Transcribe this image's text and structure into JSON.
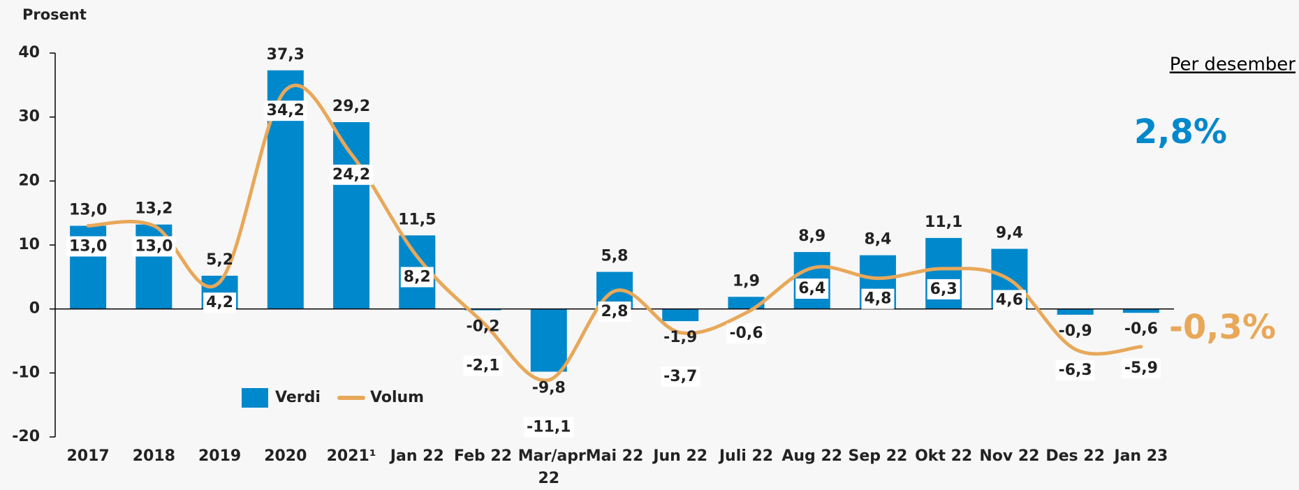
{
  "chart_data": {
    "type": "bar_line",
    "y_label": "Prosent",
    "categories": [
      "2017",
      "2018",
      "2019",
      "2020",
      "2021¹",
      "Jan 22",
      "Feb 22",
      "Mar/apr 22",
      "Mai 22",
      "Jun 22",
      "Juli 22",
      "Aug 22",
      "Sep 22",
      "Okt 22",
      "Nov 22",
      "Des 22",
      "Jan 23"
    ],
    "series": [
      {
        "name": "Verdi",
        "color": "#0088cc",
        "kind": "bar",
        "values": [
          13.0,
          13.2,
          5.2,
          37.3,
          29.2,
          11.5,
          -0.2,
          -9.8,
          5.8,
          -1.9,
          1.9,
          8.9,
          8.4,
          11.1,
          9.4,
          -0.9,
          -0.6
        ],
        "value_labels": [
          "13,0",
          "13,2",
          "5,2",
          "37,3",
          "29,2",
          "11,5",
          "-0,2",
          "-9,8",
          "5,8",
          "-1,9",
          "1,9",
          "8,9",
          "8,4",
          "11,1",
          "9,4",
          "-0,9",
          "-0,6"
        ]
      },
      {
        "name": "Volum",
        "color": "#e8a85a",
        "kind": "line",
        "values": [
          13.0,
          13.0,
          4.2,
          34.2,
          24.2,
          8.2,
          -2.1,
          -11.1,
          2.8,
          -3.7,
          -0.6,
          6.4,
          4.8,
          6.3,
          4.6,
          -6.3,
          -5.9
        ],
        "value_labels": [
          "13,0",
          "13,0",
          "4,2",
          "34,2",
          "24,2",
          "8,2",
          "-2,1",
          "-11,1",
          "2,8",
          "-3,7",
          "-0,6",
          "6,4",
          "4,8",
          "6,3",
          "4,6",
          "-6,3",
          "-5,9"
        ]
      }
    ],
    "ylim": [
      -20,
      40
    ],
    "yticks": [
      -20,
      -10,
      0,
      10,
      20,
      30,
      40
    ],
    "legend": "bottom-left",
    "annotations": [
      {
        "text": "Per desember",
        "color": "#000000"
      },
      {
        "text": "2,8%",
        "color": "#0088cc"
      },
      {
        "text": "-0,3%",
        "color": "#e8a85a"
      }
    ]
  }
}
